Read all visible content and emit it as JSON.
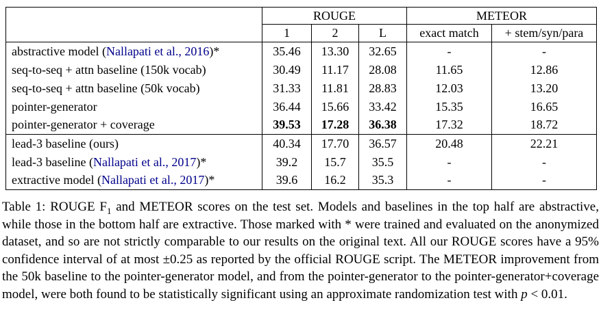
{
  "colors": {
    "citation_blue": "#00008B",
    "text": "#000000",
    "border": "#000000"
  },
  "table": {
    "header": {
      "rouge": "ROUGE",
      "meteor": "METEOR",
      "rouge_cols": [
        "1",
        "2",
        "L"
      ],
      "meteor_cols": [
        "exact match",
        "+ stem/syn/para"
      ]
    },
    "rows": [
      {
        "label_pre": "abstractive model (",
        "citation": "Nallapati et al., 2016",
        "label_post": ")*",
        "values": [
          "35.46",
          "13.30",
          "32.65",
          "-",
          "-"
        ],
        "bold_cols": [],
        "section_start": false
      },
      {
        "label_pre": "seq-to-seq + attn baseline (150k vocab)",
        "citation": "",
        "label_post": "",
        "values": [
          "30.49",
          "11.17",
          "28.08",
          "11.65",
          "12.86"
        ],
        "bold_cols": [],
        "section_start": false
      },
      {
        "label_pre": "seq-to-seq + attn baseline (50k vocab)",
        "citation": "",
        "label_post": "",
        "values": [
          "31.33",
          "11.81",
          "28.83",
          "12.03",
          "13.20"
        ],
        "bold_cols": [],
        "section_start": false
      },
      {
        "label_pre": "pointer-generator",
        "citation": "",
        "label_post": "",
        "values": [
          "36.44",
          "15.66",
          "33.42",
          "15.35",
          "16.65"
        ],
        "bold_cols": [],
        "section_start": false
      },
      {
        "label_pre": "pointer-generator + coverage",
        "citation": "",
        "label_post": "",
        "values": [
          "39.53",
          "17.28",
          "36.38",
          "17.32",
          "18.72"
        ],
        "bold_cols": [
          0,
          1,
          2
        ],
        "section_start": false
      },
      {
        "label_pre": "lead-3 baseline (ours)",
        "citation": "",
        "label_post": "",
        "values": [
          "40.34",
          "17.70",
          "36.57",
          "20.48",
          "22.21"
        ],
        "bold_cols": [],
        "section_start": true
      },
      {
        "label_pre": "lead-3 baseline (",
        "citation": "Nallapati et al., 2017",
        "label_post": ")*",
        "values": [
          "39.2",
          "15.7",
          "35.5",
          "-",
          "-"
        ],
        "bold_cols": [],
        "section_start": false
      },
      {
        "label_pre": "extractive model (",
        "citation": "Nallapati et al., 2017",
        "label_post": ")*",
        "values": [
          "39.6",
          "16.2",
          "35.3",
          "-",
          "-"
        ],
        "bold_cols": [],
        "section_start": false
      }
    ]
  },
  "caption": {
    "part1": "Table 1: ROUGE F",
    "sub": "1",
    "part2": " and METEOR scores on the test set. Models and baselines in the top half are abstractive, while those in the bottom half are extractive. Those marked with * were trained and evaluated on the anonymized dataset, and so are not strictly comparable to our results on the original text. All our ROUGE scores have a 95% confidence interval of at most ±0.25 as reported by the official ROUGE script. The METEOR improvement from the 50k baseline to the pointer-generator model, and from the pointer-generator to the pointer-generator+coverage model, were both found to be statistically significant using an approximate randomization test with ",
    "italic_p": "p",
    "part3": " < 0.01."
  }
}
